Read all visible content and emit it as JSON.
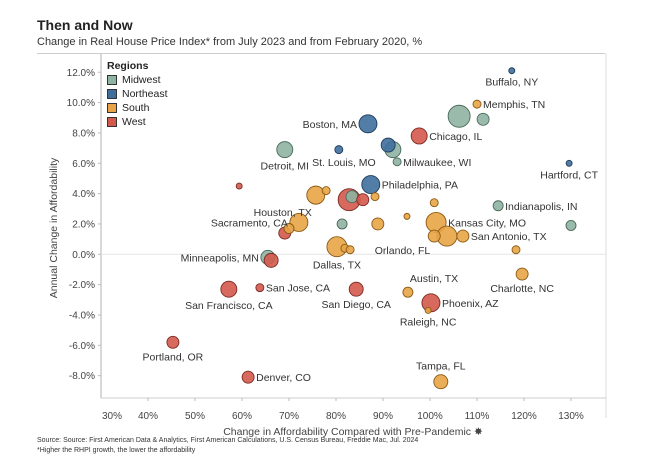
{
  "header": {
    "title": "Then and Now",
    "subtitle": "Change in Real House Price Index* from July 2023 and from February 2020, %"
  },
  "footer": {
    "source": "Source: Source: First American Data & Analytics, First American Calculations, U.S. Census Bureau, Freddie Mac, Jul. 2024",
    "footnote": "*Higher the RHPI growth, the lower the affordability"
  },
  "chart_data": {
    "type": "scatter",
    "title": "Then and Now",
    "subtitle": "Change in Real House Price Index* from July 2023 and from February 2020, %",
    "xlabel": "Change in Affordability Compared with Pre-Pandemic",
    "ylabel": "Annual Change in Affordability",
    "xlim": [
      30,
      137
    ],
    "ylim": [
      -9.5,
      12.0
    ],
    "x_ticks": [
      30,
      40,
      50,
      60,
      70,
      80,
      90,
      100,
      110,
      120,
      130
    ],
    "x_tick_labels": [
      "30%",
      "40%",
      "50%",
      "60%",
      "70%",
      "80%",
      "90%",
      "100%",
      "110%",
      "120%",
      "130%"
    ],
    "y_ticks": [
      12,
      10,
      8,
      6,
      4,
      2,
      0,
      -2,
      -4,
      -6,
      -8
    ],
    "y_tick_labels": [
      "12.0%",
      "10.0%",
      "8.0%",
      "6.0%",
      "4.0%",
      "2.0%",
      "0.0%",
      "-2.0%",
      "-4.0%",
      "-6.0%",
      "-8.0%"
    ],
    "grid": "zero-line only",
    "legend": {
      "title": "Regions",
      "placement": "top-left",
      "entries": [
        {
          "name": "Midwest",
          "color": "#8fb4a2"
        },
        {
          "name": "Northeast",
          "color": "#3e6f9c"
        },
        {
          "name": "South",
          "color": "#e8a446"
        },
        {
          "name": "West",
          "color": "#d4594c"
        }
      ]
    },
    "size_note": "bubble size relative (market size)",
    "points": [
      {
        "label": "Buffalo, NY",
        "region": "Northeast",
        "x": 117.4,
        "y": 12.1,
        "size": 1,
        "label_pos": "below"
      },
      {
        "label": "Memphis, TN",
        "region": "South",
        "x": 110.0,
        "y": 9.9,
        "size": 2,
        "label_pos": "right"
      },
      {
        "label": "Chicago, IL",
        "region": "Midwest",
        "x": 106.2,
        "y": 9.1,
        "size": 9,
        "label_pos": ""
      },
      {
        "label": "",
        "region": "Midwest",
        "x": 111.3,
        "y": 8.9,
        "size": 4
      },
      {
        "label": "Boston, MA",
        "region": "Northeast",
        "x": 86.8,
        "y": 8.6,
        "size": 7,
        "label_pos": "left"
      },
      {
        "label": "",
        "region": "Northeast",
        "x": 80.6,
        "y": 6.9,
        "size": 2
      },
      {
        "label": "",
        "region": "Northeast",
        "x": 91.1,
        "y": 7.2,
        "size": 5
      },
      {
        "label": "",
        "region": "Midwest",
        "x": 92.1,
        "y": 6.9,
        "size": 6
      },
      {
        "label": "Milwaukee, WI",
        "region": "Midwest",
        "x": 93.0,
        "y": 6.1,
        "size": 2,
        "label_pos": "right"
      },
      {
        "label": "Chicago, IL",
        "region": "West",
        "x": 97.7,
        "y": 7.8,
        "size": 6,
        "label_pos": "right"
      },
      {
        "label": "Detroit, MI",
        "region": "Midwest",
        "x": 69.1,
        "y": 6.9,
        "size": 6,
        "label_pos": "below"
      },
      {
        "label": "St. Louis, MO",
        "region": "Midwest",
        "x": 89.3,
        "y": 6.1,
        "size": 0,
        "label_pos": "left"
      },
      {
        "label": "Hartford, CT",
        "region": "Northeast",
        "x": 129.6,
        "y": 6.0,
        "size": 1,
        "label_pos": "below"
      },
      {
        "label": "Philadelphia, PA",
        "region": "Northeast",
        "x": 87.4,
        "y": 4.6,
        "size": 7,
        "label_pos": "right"
      },
      {
        "label": "",
        "region": "West",
        "x": 59.4,
        "y": 4.5,
        "size": 1
      },
      {
        "label": "Houston, TX",
        "region": "South",
        "x": 75.7,
        "y": 3.9,
        "size": 7,
        "label_pos": "below-left"
      },
      {
        "label": "",
        "region": "South",
        "x": 77.9,
        "y": 4.2,
        "size": 2
      },
      {
        "label": "",
        "region": "West",
        "x": 82.8,
        "y": 3.6,
        "size": 9
      },
      {
        "label": "",
        "region": "Midwest",
        "x": 83.4,
        "y": 3.8,
        "size": 4
      },
      {
        "label": "",
        "region": "West",
        "x": 85.7,
        "y": 3.6,
        "size": 4
      },
      {
        "label": "",
        "region": "South",
        "x": 88.3,
        "y": 3.8,
        "size": 2
      },
      {
        "label": "",
        "region": "South",
        "x": 100.9,
        "y": 3.4,
        "size": 2
      },
      {
        "label": "Indianapolis, IN",
        "region": "Midwest",
        "x": 114.5,
        "y": 3.2,
        "size": 3,
        "label_pos": "right"
      },
      {
        "label": "",
        "region": "Midwest",
        "x": 130.0,
        "y": 1.9,
        "size": 3
      },
      {
        "label": "Sacramento, CA",
        "region": "South",
        "x": 72.1,
        "y": 2.1,
        "size": 7,
        "label_pos": "left"
      },
      {
        "label": "",
        "region": "South",
        "x": 70.0,
        "y": 1.7,
        "size": 3
      },
      {
        "label": "",
        "region": "West",
        "x": 69.1,
        "y": 1.4,
        "size": 4
      },
      {
        "label": "",
        "region": "Midwest",
        "x": 81.3,
        "y": 2.0,
        "size": 3
      },
      {
        "label": "",
        "region": "South",
        "x": 88.9,
        "y": 2.0,
        "size": 4
      },
      {
        "label": "",
        "region": "South",
        "x": 95.1,
        "y": 2.5,
        "size": 1
      },
      {
        "label": "Kansas City, MO",
        "region": "South",
        "x": 101.3,
        "y": 2.1,
        "size": 8,
        "label_pos": "right"
      },
      {
        "label": "Orlando, FL",
        "region": "South",
        "x": 100.9,
        "y": 1.2,
        "size": 4,
        "label_pos": "below-left"
      },
      {
        "label": "",
        "region": "South",
        "x": 103.6,
        "y": 1.2,
        "size": 8
      },
      {
        "label": "San Antonio, TX",
        "region": "South",
        "x": 107.0,
        "y": 1.2,
        "size": 4,
        "label_pos": "right"
      },
      {
        "label": "",
        "region": "South",
        "x": 118.3,
        "y": 0.3,
        "size": 2
      },
      {
        "label": "Dallas, TX",
        "region": "South",
        "x": 80.2,
        "y": 0.5,
        "size": 8,
        "label_pos": "below"
      },
      {
        "label": "",
        "region": "South",
        "x": 81.9,
        "y": 0.4,
        "size": 2
      },
      {
        "label": "",
        "region": "South",
        "x": 83.0,
        "y": 0.3,
        "size": 2
      },
      {
        "label": "Minneapolis, MN",
        "region": "Midwest",
        "x": 65.5,
        "y": -0.2,
        "size": 5,
        "label_pos": "left"
      },
      {
        "label": "",
        "region": "West",
        "x": 66.2,
        "y": -0.4,
        "size": 5
      },
      {
        "label": "Charlotte, NC",
        "region": "South",
        "x": 119.6,
        "y": -1.3,
        "size": 4,
        "label_pos": "below"
      },
      {
        "label": "San Francisco, CA",
        "region": "West",
        "x": 57.2,
        "y": -2.3,
        "size": 6,
        "label_pos": "below"
      },
      {
        "label": "San Jose, CA",
        "region": "West",
        "x": 63.8,
        "y": -2.2,
        "size": 2,
        "label_pos": "right"
      },
      {
        "label": "San Diego, CA",
        "region": "West",
        "x": 84.3,
        "y": -2.3,
        "size": 5,
        "label_pos": "below"
      },
      {
        "label": "Austin, TX",
        "region": "South",
        "x": 95.3,
        "y": -2.5,
        "size": 3,
        "label_pos": "above-right"
      },
      {
        "label": "Phoenix, AZ",
        "region": "West",
        "x": 100.2,
        "y": -3.2,
        "size": 7,
        "label_pos": "right"
      },
      {
        "label": "Raleigh, NC",
        "region": "South",
        "x": 99.6,
        "y": -3.7,
        "size": 1,
        "label_pos": "below"
      },
      {
        "label": "Portland, OR",
        "region": "West",
        "x": 45.3,
        "y": -5.8,
        "size": 4,
        "label_pos": "below"
      },
      {
        "label": "Denver, CO",
        "region": "West",
        "x": 61.3,
        "y": -8.1,
        "size": 4,
        "label_pos": "right"
      },
      {
        "label": "Tampa, FL",
        "region": "South",
        "x": 102.3,
        "y": -8.4,
        "size": 5,
        "label_pos": "above"
      }
    ]
  }
}
